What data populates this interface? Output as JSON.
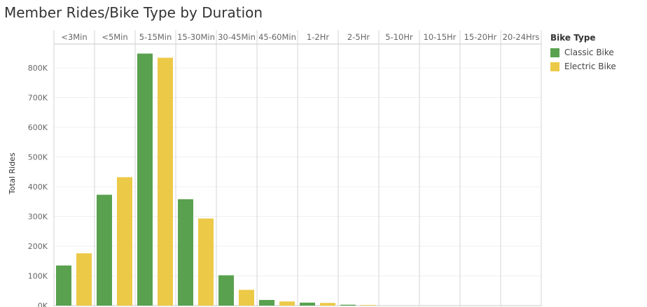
{
  "chart_data": {
    "type": "bar",
    "title": "Member Rides/Bike Type by Duration",
    "ylabel": "Total Rides",
    "xlabel": "",
    "ylim": [
      0,
      880000
    ],
    "yticks": [
      0,
      100000,
      200000,
      300000,
      400000,
      500000,
      600000,
      700000,
      800000
    ],
    "ytick_labels": [
      "0K",
      "100K",
      "200K",
      "300K",
      "400K",
      "500K",
      "600K",
      "700K",
      "800K"
    ],
    "categories": [
      "<3Min",
      "<5Min",
      "5-15Min",
      "15-30Min",
      "30-45Min",
      "45-60Min",
      "1-2Hr",
      "2-5Hr",
      "5-10Hr",
      "10-15Hr",
      "15-20Hr",
      "20-24Hrs"
    ],
    "legend_title": "Bike Type",
    "legend_position": "right",
    "grid": true,
    "series": [
      {
        "name": "Classic Bike",
        "color": "#59a14f",
        "values": [
          135000,
          373000,
          848000,
          358000,
          102000,
          19000,
          10000,
          3000,
          0,
          0,
          0,
          0
        ]
      },
      {
        "name": "Electric Bike",
        "color": "#edc948",
        "values": [
          176000,
          432000,
          834000,
          293000,
          53000,
          14000,
          9000,
          2000,
          0,
          0,
          0,
          0
        ]
      }
    ]
  }
}
